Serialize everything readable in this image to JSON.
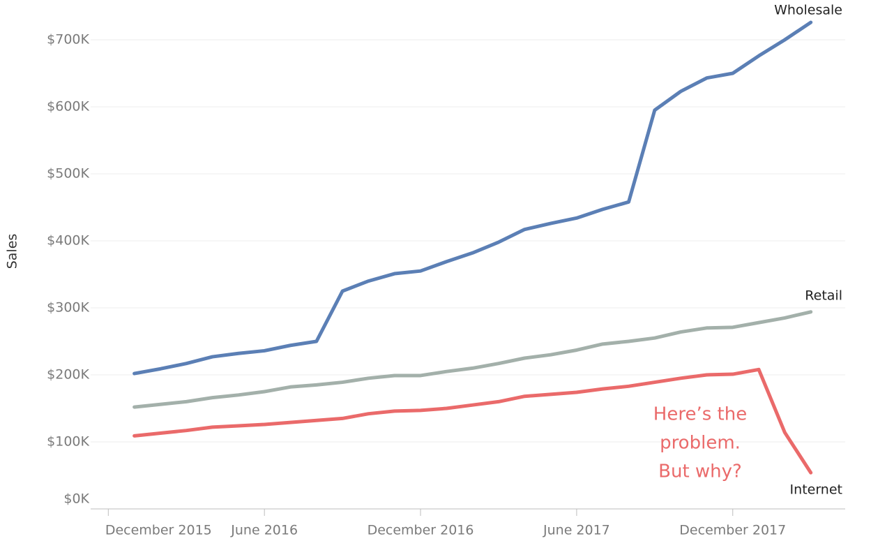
{
  "chart_data": {
    "type": "line",
    "y_label": "Sales",
    "x": [
      "2016-01",
      "2016-02",
      "2016-03",
      "2016-04",
      "2016-05",
      "2016-06",
      "2016-07",
      "2016-08",
      "2016-09",
      "2016-10",
      "2016-11",
      "2016-12",
      "2017-01",
      "2017-02",
      "2017-03",
      "2017-04",
      "2017-05",
      "2017-06",
      "2017-07",
      "2017-08",
      "2017-09",
      "2017-10",
      "2017-11",
      "2017-12",
      "2018-01",
      "2018-02",
      "2018-03"
    ],
    "xlim": [
      "2015-11",
      "2018-04"
    ],
    "xticks": [
      {
        "value": "2015-12",
        "label": "December 2015"
      },
      {
        "value": "2016-06",
        "label": "June 2016"
      },
      {
        "value": "2016-12",
        "label": "December 2016"
      },
      {
        "value": "2017-06",
        "label": "June 2017"
      },
      {
        "value": "2017-12",
        "label": "December 2017"
      }
    ],
    "ylim": [
      0,
      750000
    ],
    "yticks": [
      {
        "value": 0,
        "label": "$0K"
      },
      {
        "value": 100000,
        "label": "$100K"
      },
      {
        "value": 200000,
        "label": "$200K"
      },
      {
        "value": 300000,
        "label": "$300K"
      },
      {
        "value": 400000,
        "label": "$400K"
      },
      {
        "value": 500000,
        "label": "$500K"
      },
      {
        "value": 600000,
        "label": "$600K"
      },
      {
        "value": 700000,
        "label": "$700K"
      }
    ],
    "grid": true,
    "series": [
      {
        "name": "Wholesale",
        "color": "#5b7fb5",
        "values": [
          202000,
          209000,
          217000,
          227000,
          232000,
          236000,
          244000,
          250000,
          325000,
          340000,
          351000,
          355000,
          369000,
          382000,
          398000,
          417000,
          426000,
          434000,
          447000,
          458000,
          595000,
          623000,
          643000,
          650000,
          676000,
          700000,
          726000
        ]
      },
      {
        "name": "Retail",
        "color": "#a3b0aa",
        "values": [
          152000,
          156000,
          160000,
          166000,
          170000,
          175000,
          182000,
          185000,
          189000,
          195000,
          199000,
          199000,
          205000,
          210000,
          217000,
          225000,
          230000,
          237000,
          246000,
          250000,
          255000,
          264000,
          270000,
          271000,
          278000,
          285000,
          294000
        ]
      },
      {
        "name": "Internet",
        "color": "#ea6a6a",
        "values": [
          109000,
          113000,
          117000,
          122000,
          124000,
          126000,
          129000,
          132000,
          135000,
          142000,
          146000,
          147000,
          150000,
          155000,
          160000,
          168000,
          171000,
          174000,
          179000,
          183000,
          189000,
          195000,
          200000,
          201000,
          208000,
          114000,
          54000
        ]
      }
    ],
    "annotation": {
      "lines": [
        "Here’s the",
        "problem.",
        "But why?"
      ],
      "color": "#ea6a6a"
    }
  }
}
